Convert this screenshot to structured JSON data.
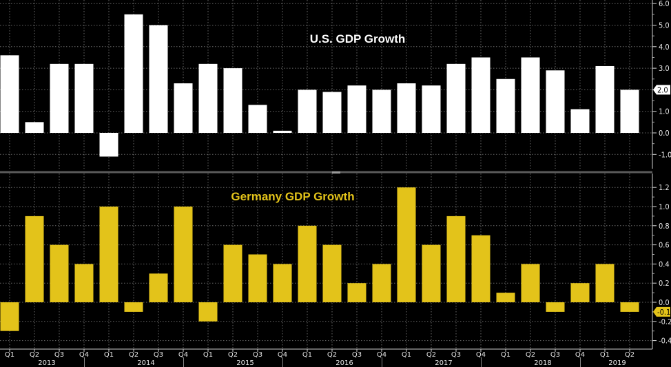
{
  "chart_data": [
    {
      "type": "bar",
      "title": "U.S. GDP Growth",
      "title_color": "#ffffff",
      "bar_color": "#ffffff",
      "xlabel": "",
      "ylabel": "",
      "ylim": [
        -1.5,
        6.2
      ],
      "yticks": [
        "6.0",
        "5.0",
        "4.0",
        "3.0",
        "2.0",
        "1.0",
        "0.0",
        "-1.0"
      ],
      "ytick_values": [
        6,
        5,
        4,
        3,
        2,
        1,
        0,
        -1
      ],
      "last_value_label": "2.0",
      "grid": true,
      "categories": [
        "2013 Q1",
        "2013 Q2",
        "2013 Q3",
        "2013 Q4",
        "2014 Q1",
        "2014 Q2",
        "2014 Q3",
        "2014 Q4",
        "2015 Q1",
        "2015 Q2",
        "2015 Q3",
        "2015 Q4",
        "2016 Q1",
        "2016 Q2",
        "2016 Q3",
        "2016 Q4",
        "2017 Q1",
        "2017 Q2",
        "2017 Q3",
        "2017 Q4",
        "2018 Q1",
        "2018 Q2",
        "2018 Q3",
        "2018 Q4",
        "2019 Q1",
        "2019 Q2"
      ],
      "values": [
        3.6,
        0.5,
        3.2,
        3.2,
        -1.1,
        5.5,
        5.0,
        2.3,
        3.2,
        3.0,
        1.3,
        0.1,
        2.0,
        1.9,
        2.2,
        2.0,
        2.3,
        2.2,
        3.2,
        3.5,
        2.5,
        3.5,
        2.9,
        1.1,
        3.1,
        2.0
      ]
    },
    {
      "type": "bar",
      "title": "Germany GDP Growth",
      "title_color": "#e3c31a",
      "bar_color": "#e3c31a",
      "xlabel": "",
      "ylabel": "",
      "ylim": [
        -0.42,
        1.38
      ],
      "yticks": [
        "1.2",
        "1.0",
        "0.8",
        "0.6",
        "0.4",
        "0.2",
        "0.0",
        "-0.2",
        "-0.4"
      ],
      "ytick_values": [
        1.2,
        1.0,
        0.8,
        0.6,
        0.4,
        0.2,
        0.0,
        -0.2,
        -0.4
      ],
      "last_value_label": "-0.1",
      "grid": true,
      "categories": [
        "2013 Q1",
        "2013 Q2",
        "2013 Q3",
        "2013 Q4",
        "2014 Q1",
        "2014 Q2",
        "2014 Q3",
        "2014 Q4",
        "2015 Q1",
        "2015 Q2",
        "2015 Q3",
        "2015 Q4",
        "2016 Q1",
        "2016 Q2",
        "2016 Q3",
        "2016 Q4",
        "2017 Q1",
        "2017 Q2",
        "2017 Q3",
        "2017 Q4",
        "2018 Q1",
        "2018 Q2",
        "2018 Q3",
        "2018 Q4",
        "2019 Q1",
        "2019 Q2"
      ],
      "values": [
        -0.3,
        0.9,
        0.6,
        0.4,
        1.0,
        -0.1,
        0.3,
        1.0,
        -0.2,
        0.6,
        0.5,
        0.4,
        0.8,
        0.6,
        0.2,
        0.4,
        1.2,
        0.6,
        0.9,
        0.7,
        0.1,
        0.4,
        -0.1,
        0.2,
        0.4,
        -0.1
      ]
    }
  ],
  "x_axis": {
    "quarter_labels": [
      "Q1",
      "Q2",
      "Q3",
      "Q4",
      "Q1",
      "Q2",
      "Q3",
      "Q4",
      "Q1",
      "Q2",
      "Q3",
      "Q4",
      "Q1",
      "Q2",
      "Q3",
      "Q4",
      "Q1",
      "Q2",
      "Q3",
      "Q4",
      "Q1",
      "Q2",
      "Q3",
      "Q4",
      "Q1",
      "Q2"
    ],
    "years": [
      {
        "label": "2013",
        "center_index": 1.5
      },
      {
        "label": "2014",
        "center_index": 5.5
      },
      {
        "label": "2015",
        "center_index": 9.5
      },
      {
        "label": "2016",
        "center_index": 13.5
      },
      {
        "label": "2017",
        "center_index": 17.5
      },
      {
        "label": "2018",
        "center_index": 21.5
      },
      {
        "label": "2019",
        "center_index": 24.5
      }
    ]
  }
}
